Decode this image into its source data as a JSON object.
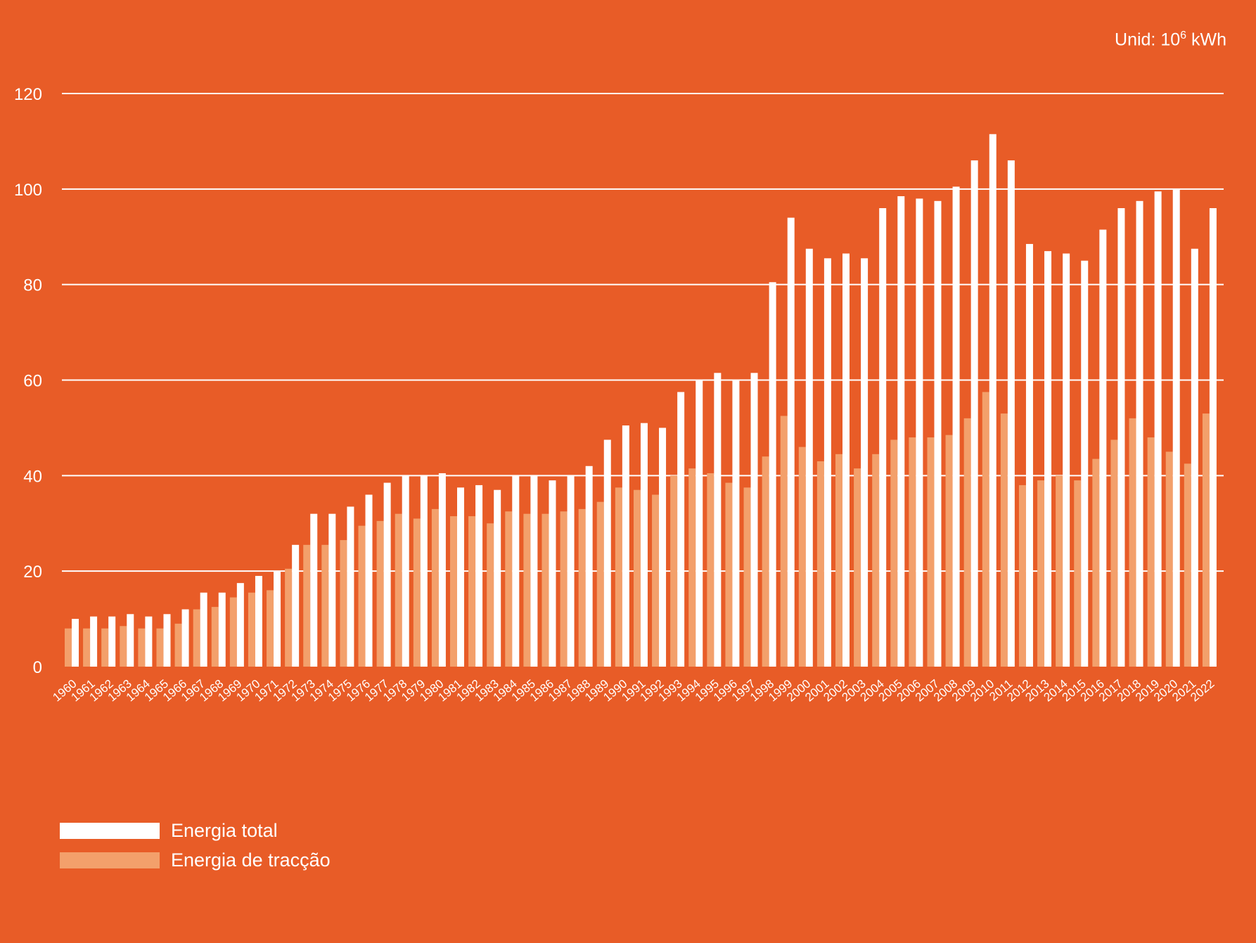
{
  "chart_data": {
    "type": "bar",
    "unit_prefix": "Unid: 10",
    "unit_exponent": "6",
    "unit_suffix": " kWh",
    "ylim": [
      0,
      120
    ],
    "yticks": [
      "0",
      "20",
      "40",
      "60",
      "80",
      "100",
      "120"
    ],
    "grid": true,
    "legend_position": "bottom-left",
    "colors": {
      "background": "#E85C27",
      "total": "#FFFFFF",
      "traction": "#F3A06B",
      "grid": "#FFFFFF",
      "text": "#FFFFFF"
    },
    "categories": [
      "1960",
      "1961",
      "1962",
      "1963",
      "1964",
      "1965",
      "1966",
      "1967",
      "1968",
      "1969",
      "1970",
      "1971",
      "1972",
      "1973",
      "1974",
      "1975",
      "1976",
      "1977",
      "1978",
      "1979",
      "1980",
      "1981",
      "1982",
      "1983",
      "1984",
      "1985",
      "1986",
      "1987",
      "1988",
      "1989",
      "1990",
      "1991",
      "1992",
      "1993",
      "1994",
      "1995",
      "1996",
      "1997",
      "1998",
      "1999",
      "2000",
      "2001",
      "2002",
      "2003",
      "2004",
      "2005",
      "2006",
      "2007",
      "2008",
      "2009",
      "2010",
      "2011",
      "2012",
      "2013",
      "2014",
      "2015",
      "2016",
      "2017",
      "2018",
      "2019",
      "2020",
      "2021",
      "2022"
    ],
    "series": [
      {
        "name": "Energia de tracção",
        "values": [
          8,
          8,
          8,
          8.5,
          8,
          8,
          9,
          12,
          12.5,
          14.5,
          15.5,
          16,
          20.5,
          25.5,
          25.5,
          26.5,
          29.5,
          30.5,
          32,
          31,
          33,
          31.5,
          31.5,
          30,
          32.5,
          32,
          32,
          32.5,
          33,
          34.5,
          37.5,
          37,
          36,
          40,
          41.5,
          40.5,
          38.5,
          37.5,
          44,
          52.5,
          46,
          43,
          44.5,
          41.5,
          44.5,
          47.5,
          48,
          48,
          48.5,
          52,
          57.5,
          53,
          38,
          39,
          40,
          39,
          43.5,
          47.5,
          52,
          48,
          45,
          42.5,
          53
        ]
      },
      {
        "name": "Energia total",
        "values": [
          10,
          10.5,
          10.5,
          11,
          10.5,
          11,
          12,
          15.5,
          15.5,
          17.5,
          19,
          20,
          25.5,
          32,
          32,
          33.5,
          36,
          38.5,
          40,
          40,
          40.5,
          37.5,
          38,
          37,
          40,
          40,
          39,
          40,
          42,
          47.5,
          50.5,
          51,
          50,
          57.5,
          60,
          61.5,
          60,
          61.5,
          80.5,
          94,
          87.5,
          85.5,
          86.5,
          85.5,
          96,
          98.5,
          98,
          97.5,
          100.5,
          106,
          111.5,
          106,
          88.5,
          87,
          86.5,
          85,
          91.5,
          96,
          97.5,
          99.5,
          100,
          87.5,
          96
        ]
      }
    ]
  }
}
